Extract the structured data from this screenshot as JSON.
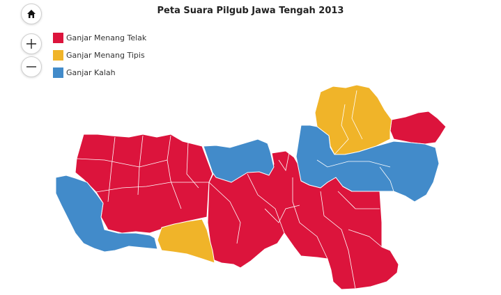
{
  "title": "Peta Suara Pilgub Jawa Tengah 2013",
  "controls": {
    "home_icon": "home-icon",
    "zoom_in_icon": "plus-icon",
    "zoom_out_icon": "minus-icon"
  },
  "legend": [
    {
      "label": "Ganjar Menang Telak",
      "color": "#dc143c"
    },
    {
      "label": "Ganjar Menang Tipis",
      "color": "#f0b429"
    },
    {
      "label": "Ganjar Kalah",
      "color": "#428bca"
    }
  ],
  "map_regions": [
    {
      "result": "Ganjar Menang Telak",
      "color": "#dc143c"
    },
    {
      "result": "Ganjar Menang Tipis",
      "color": "#f0b429"
    },
    {
      "result": "Ganjar Kalah",
      "color": "#428bca"
    }
  ]
}
